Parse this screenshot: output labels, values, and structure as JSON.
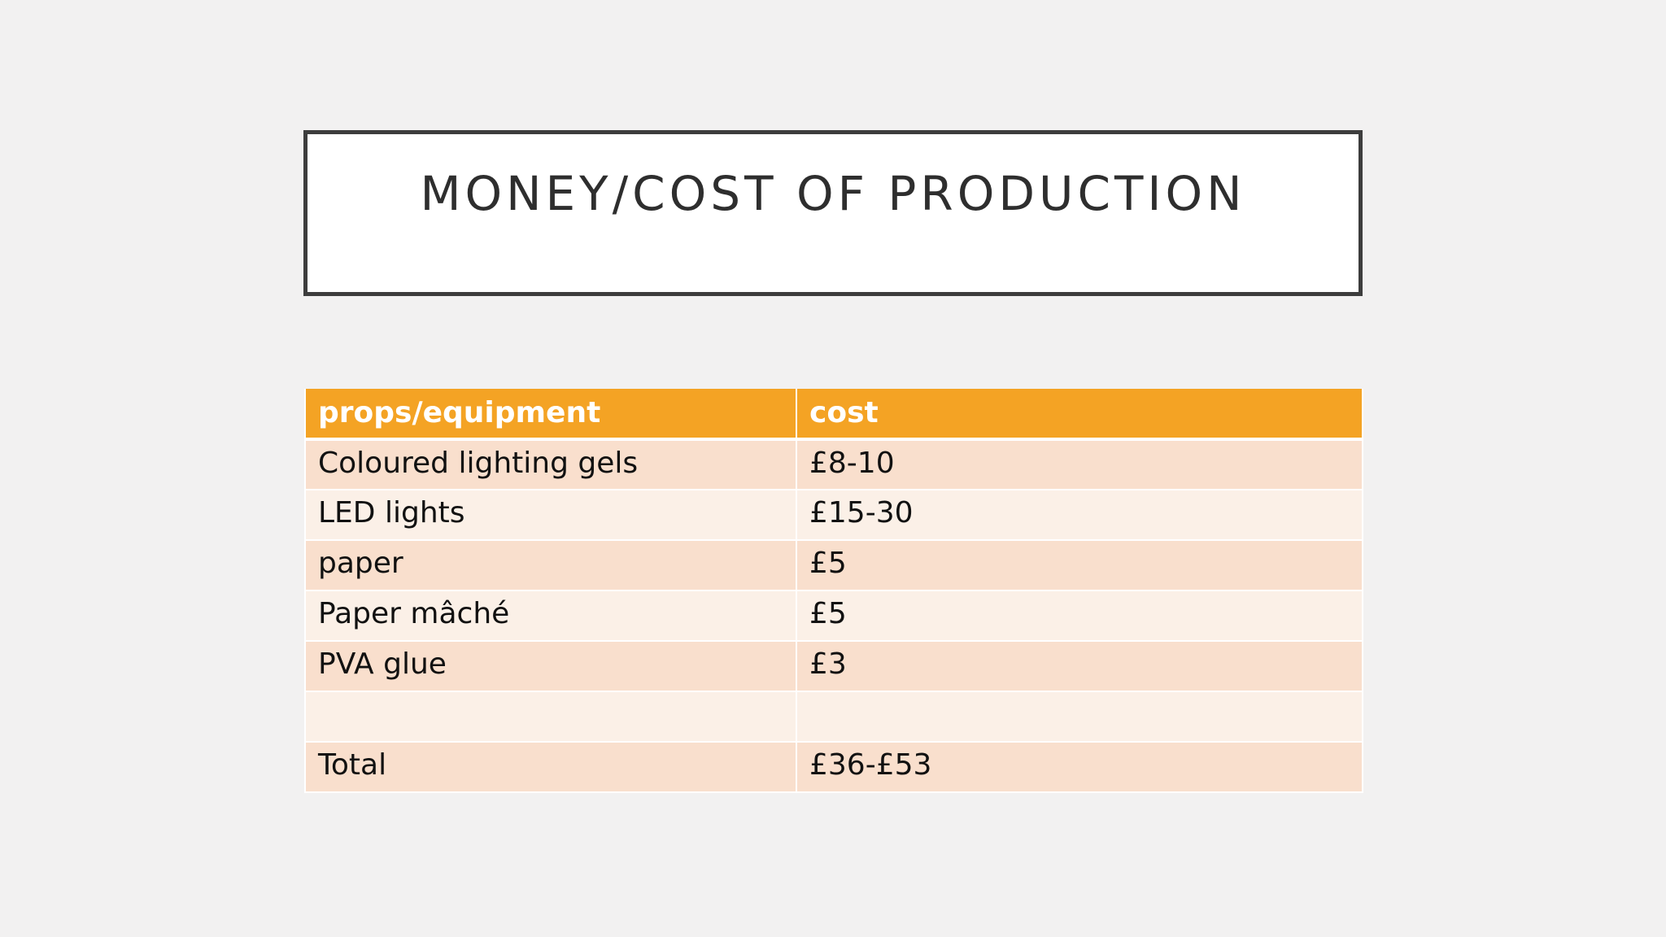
{
  "slide": {
    "title": "MONEY/COST OF PRODUCTION"
  },
  "table": {
    "headers": [
      "props/equipment",
      "cost"
    ],
    "rows": [
      [
        "Coloured lighting gels",
        "£8-10"
      ],
      [
        "LED lights",
        "£15-30"
      ],
      [
        "paper",
        "£5"
      ],
      [
        "Paper mâché",
        "£5"
      ],
      [
        "PVA glue",
        "£3"
      ],
      [
        "",
        ""
      ],
      [
        "Total",
        "£36-£53"
      ]
    ]
  },
  "colors": {
    "header_bg": "#f4a324",
    "row_dark": "#f9dfcd",
    "row_light": "#fbf0e7",
    "title_border": "#3d3d3d",
    "background": "#f2f1f1"
  }
}
